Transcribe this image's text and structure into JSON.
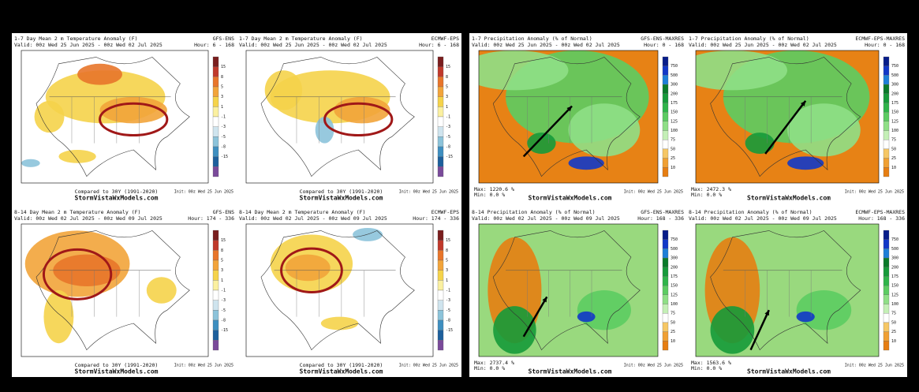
{
  "panels": [
    {
      "title": "1-7 Day Mean 2 m Temperature Anomaly (F)",
      "model": "GFS-ENS",
      "valid": "Valid: 00z Wed 25 Jun 2025 - 00z Wed 02 Jul 2025",
      "hour": "Hour: 6 - 168",
      "compared": "Compared to 30Y (1991-2020)",
      "site": "StormVistaWxModels.com",
      "init": "Init: 00z Wed 25 Jun 2025",
      "colorbar": [
        15,
        8,
        5,
        3,
        1,
        -1,
        -3,
        -5,
        -8,
        -15
      ]
    },
    {
      "title": "1-7 Day Mean 2 m Temperature Anomaly (F)",
      "model": "ECMWF-EPS",
      "valid": "Valid: 00z Wed 25 Jun 2025 - 00z Wed 02 Jul 2025",
      "hour": "Hour: 6 - 168",
      "compared": "Compared to 30Y (1991-2020)",
      "site": "StormVistaWxModels.com",
      "init": "Init: 00z Wed 25 Jun 2025",
      "colorbar": [
        15,
        8,
        5,
        3,
        1,
        -1,
        -3,
        -5,
        -8,
        -15
      ]
    },
    {
      "title": "1-7 Precipitation Anomaly (% of Normal)",
      "model": "GFS-ENS-MAXRES",
      "valid": "Valid: 00z Wed 25 Jun 2025 - 00z Wed 02 Jul 2025",
      "hour": "Hour: 0 - 168",
      "max": "Max: 1220.6 %",
      "min": "Min: 0.0 %",
      "site": "StormVistaWxModels.com",
      "init": "Init: 00z Wed 25 Jun 2025",
      "colorbar": [
        750,
        500,
        300,
        200,
        175,
        150,
        125,
        100,
        75,
        50,
        25,
        10
      ]
    },
    {
      "title": "1-7 Precipitation Anomaly (% of Normal)",
      "model": "ECMWF-EPS-MAXRES",
      "valid": "Valid: 00z Wed 25 Jun 2025 - 00z Wed 02 Jul 2025",
      "hour": "Hour: 0 - 168",
      "max": "Max: 2472.3 %",
      "min": "Min: 0.0 %",
      "site": "StormVistaWxModels.com",
      "init": "Init: 00z Wed 25 Jun 2025",
      "colorbar": [
        750,
        500,
        300,
        200,
        175,
        150,
        125,
        100,
        75,
        50,
        25,
        10
      ]
    },
    {
      "title": "8-14 Day Mean 2 m Temperature Anomaly (F)",
      "model": "GFS-ENS",
      "valid": "Valid: 00z Wed 02 Jul 2025 - 00z Wed 09 Jul 2025",
      "hour": "Hour: 174 - 336",
      "compared": "Compared to 30Y (1991-2020)",
      "site": "StormVistaWxModels.com",
      "init": "Init: 00z Wed 25 Jun 2025",
      "colorbar": [
        15,
        8,
        5,
        3,
        1,
        -1,
        -3,
        -5,
        -8,
        -15
      ]
    },
    {
      "title": "8-14 Day Mean 2 m Temperature Anomaly (F)",
      "model": "ECMWF-EPS",
      "valid": "Valid: 00z Wed 02 Jul 2025 - 00z Wed 09 Jul 2025",
      "hour": "Hour: 174 - 336",
      "compared": "Compared to 30Y (1991-2020)",
      "site": "StormVistaWxModels.com",
      "init": "Init: 00z Wed 25 Jun 2025",
      "colorbar": [
        15,
        8,
        5,
        3,
        1,
        -1,
        -3,
        -5,
        -8,
        -15
      ]
    },
    {
      "title": "8-14 Precipitation Anomaly (% of Normal)",
      "model": "GFS-ENS-MAXRES",
      "valid": "Valid: 00z Wed 02 Jul 2025 - 00z Wed 09 Jul 2025",
      "hour": "Hour: 168 - 336",
      "max": "Max: 2737.4 %",
      "min": "Min: 0.0 %",
      "site": "StormVistaWxModels.com",
      "init": "Init: 00z Wed 25 Jun 2025",
      "colorbar": [
        750,
        500,
        300,
        200,
        175,
        150,
        125,
        100,
        75,
        50,
        25,
        10
      ]
    },
    {
      "title": "8-14 Precipitation Anomaly (% of Normal)",
      "model": "ECMWF-EPS-MAXRES",
      "valid": "Valid: 00z Wed 02 Jul 2025 - 00z Wed 09 Jul 2025",
      "hour": "Hour: 168 - 336",
      "max": "Max: 1563.6 %",
      "min": "Min: 0.0 %",
      "site": "StormVistaWxModels.com",
      "init": "Init: 00z Wed 25 Jun 2025",
      "colorbar": [
        750,
        500,
        300,
        200,
        175,
        150,
        125,
        100,
        75,
        50,
        25,
        10
      ]
    }
  ]
}
